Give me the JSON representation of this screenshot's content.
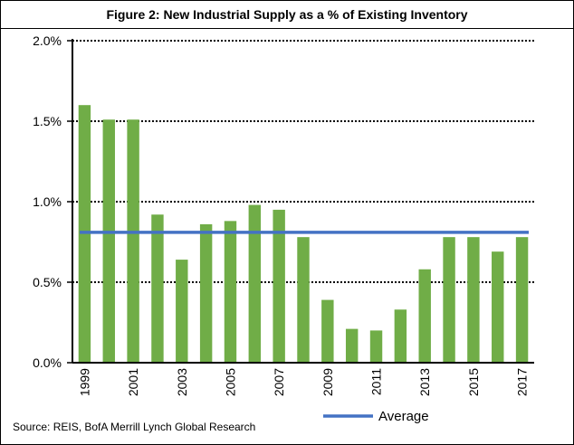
{
  "colors": {
    "bar": "#70AD47",
    "average": "#4472C4",
    "grid": "#000000"
  },
  "chart_data": {
    "type": "bar",
    "title": "Figure 2: New Industrial Supply as a % of Existing Inventory",
    "categories": [
      "1999",
      "2000",
      "2001",
      "2002",
      "2003",
      "2004",
      "2005",
      "2006",
      "2007",
      "2008",
      "2009",
      "2010",
      "2011",
      "2012",
      "2013",
      "2014",
      "2015",
      "2016",
      "2017"
    ],
    "series": [
      {
        "values": [
          1.6,
          1.51,
          1.51,
          0.92,
          0.64,
          0.86,
          0.88,
          0.98,
          0.95,
          0.78,
          0.39,
          0.21,
          0.2,
          0.33,
          0.58,
          0.78,
          0.78,
          0.69,
          0.78
        ]
      },
      {
        "name": "Average",
        "type": "line",
        "value": 0.81
      }
    ],
    "x_tick_labels": [
      "1999",
      "2001",
      "2003",
      "2005",
      "2007",
      "2009",
      "2011",
      "2013",
      "2015",
      "2017"
    ],
    "y_tick_labels": [
      "0.0%",
      "0.5%",
      "1.0%",
      "1.5%",
      "2.0%"
    ],
    "ylim": [
      0,
      2.0
    ],
    "grid": "horizontal-dotted",
    "legend": {
      "position": "bottom",
      "items": [
        "Average"
      ]
    }
  },
  "source": "Source: REIS, BofA Merrill Lynch Global Research"
}
